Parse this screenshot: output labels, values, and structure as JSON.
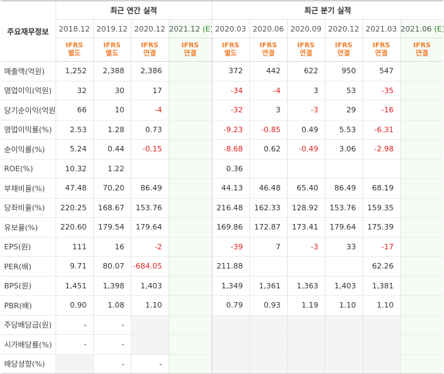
{
  "header": {
    "row_title": "주요재무정보",
    "annual_title": "최근 연간 실적",
    "quarter_title": "최근 분기 실적",
    "estimate_mark": "(E)"
  },
  "columns": [
    {
      "period": "2018.12",
      "ifrs": "IFRS",
      "basis": "별도",
      "estimate": false
    },
    {
      "period": "2019.12",
      "ifrs": "IFRS",
      "basis": "별도",
      "estimate": false
    },
    {
      "period": "2020.12",
      "ifrs": "IFRS",
      "basis": "연결",
      "estimate": false
    },
    {
      "period": "2021.12",
      "ifrs": "IFRS",
      "basis": "연결",
      "estimate": true
    },
    {
      "period": "2020.03",
      "ifrs": "IFRS",
      "basis": "별도",
      "estimate": false
    },
    {
      "period": "2020.06",
      "ifrs": "IFRS",
      "basis": "연결",
      "estimate": false
    },
    {
      "period": "2020.09",
      "ifrs": "IFRS",
      "basis": "연결",
      "estimate": false
    },
    {
      "period": "2020.12",
      "ifrs": "IFRS",
      "basis": "연결",
      "estimate": false
    },
    {
      "period": "2021.03",
      "ifrs": "IFRS",
      "basis": "연결",
      "estimate": false
    },
    {
      "period": "2021.06",
      "ifrs": "IFRS",
      "basis": "연결",
      "estimate": true
    }
  ],
  "rows": [
    {
      "label": "매출액(억원)",
      "values": [
        "1,252",
        "2,388",
        "2,386",
        "",
        "372",
        "442",
        "622",
        "950",
        "547",
        ""
      ]
    },
    {
      "label": "영업이익(억원)",
      "values": [
        "32",
        "30",
        "17",
        "",
        "-34",
        "-4",
        "3",
        "53",
        "-35",
        ""
      ]
    },
    {
      "label": "당기순이익(억원)",
      "values": [
        "66",
        "10",
        "-4",
        "",
        "-32",
        "3",
        "-3",
        "29",
        "-16",
        ""
      ]
    },
    {
      "label": "영업이익률(%)",
      "values": [
        "2.53",
        "1.28",
        "0.73",
        "",
        "-9.23",
        "-0.85",
        "0.49",
        "5.53",
        "-6.31",
        ""
      ]
    },
    {
      "label": "순이익률(%)",
      "values": [
        "5.24",
        "0.44",
        "-0.15",
        "",
        "-8.68",
        "0.62",
        "-0.49",
        "3.06",
        "-2.98",
        ""
      ]
    },
    {
      "label": "ROE(%)",
      "values": [
        "10.32",
        "1.22",
        "",
        "",
        "0.36",
        "",
        "",
        "",
        "",
        ""
      ]
    },
    {
      "label": "부채비율(%)",
      "values": [
        "47.48",
        "70.20",
        "86.49",
        "",
        "44.13",
        "46.48",
        "65.40",
        "86.49",
        "68.19",
        ""
      ]
    },
    {
      "label": "당좌비율(%)",
      "values": [
        "220.25",
        "168.67",
        "153.76",
        "",
        "216.48",
        "162.33",
        "128.92",
        "153.76",
        "159.35",
        ""
      ]
    },
    {
      "label": "유보율(%)",
      "values": [
        "220.60",
        "179.54",
        "179.64",
        "",
        "169.86",
        "172.87",
        "173.41",
        "179.64",
        "175.39",
        ""
      ]
    },
    {
      "label": "EPS(원)",
      "values": [
        "111",
        "16",
        "-2",
        "",
        "-39",
        "7",
        "-3",
        "33",
        "-17",
        ""
      ]
    },
    {
      "label": "PER(배)",
      "values": [
        "9.71",
        "80.07",
        "-684.05",
        "",
        "211.88",
        "",
        "",
        "",
        "62.26",
        ""
      ]
    },
    {
      "label": "BPS(원)",
      "values": [
        "1,451",
        "1,398",
        "1,403",
        "",
        "1,349",
        "1,361",
        "1,363",
        "1,403",
        "1,381",
        ""
      ]
    },
    {
      "label": "PBR(배)",
      "values": [
        "0.90",
        "1.08",
        "1.10",
        "",
        "0.79",
        "0.93",
        "1.19",
        "1.10",
        "1.10",
        ""
      ]
    },
    {
      "label": "주당배당금(원)",
      "values": [
        "-",
        "-",
        "",
        "",
        "",
        "",
        "",
        "",
        "",
        ""
      ]
    },
    {
      "label": "시가배당률(%)",
      "values": [
        "-",
        "-",
        "",
        "",
        "",
        "",
        "",
        "",
        "",
        ""
      ]
    },
    {
      "label": "배당성향(%)",
      "values": [
        "",
        "-",
        "-",
        "",
        "",
        "",
        "",
        "",
        "",
        ""
      ]
    }
  ],
  "colors": {
    "ifrs_orange": "#f07f2d",
    "negative_red": "#e02020",
    "estimate_green": "#2a8a2a"
  }
}
